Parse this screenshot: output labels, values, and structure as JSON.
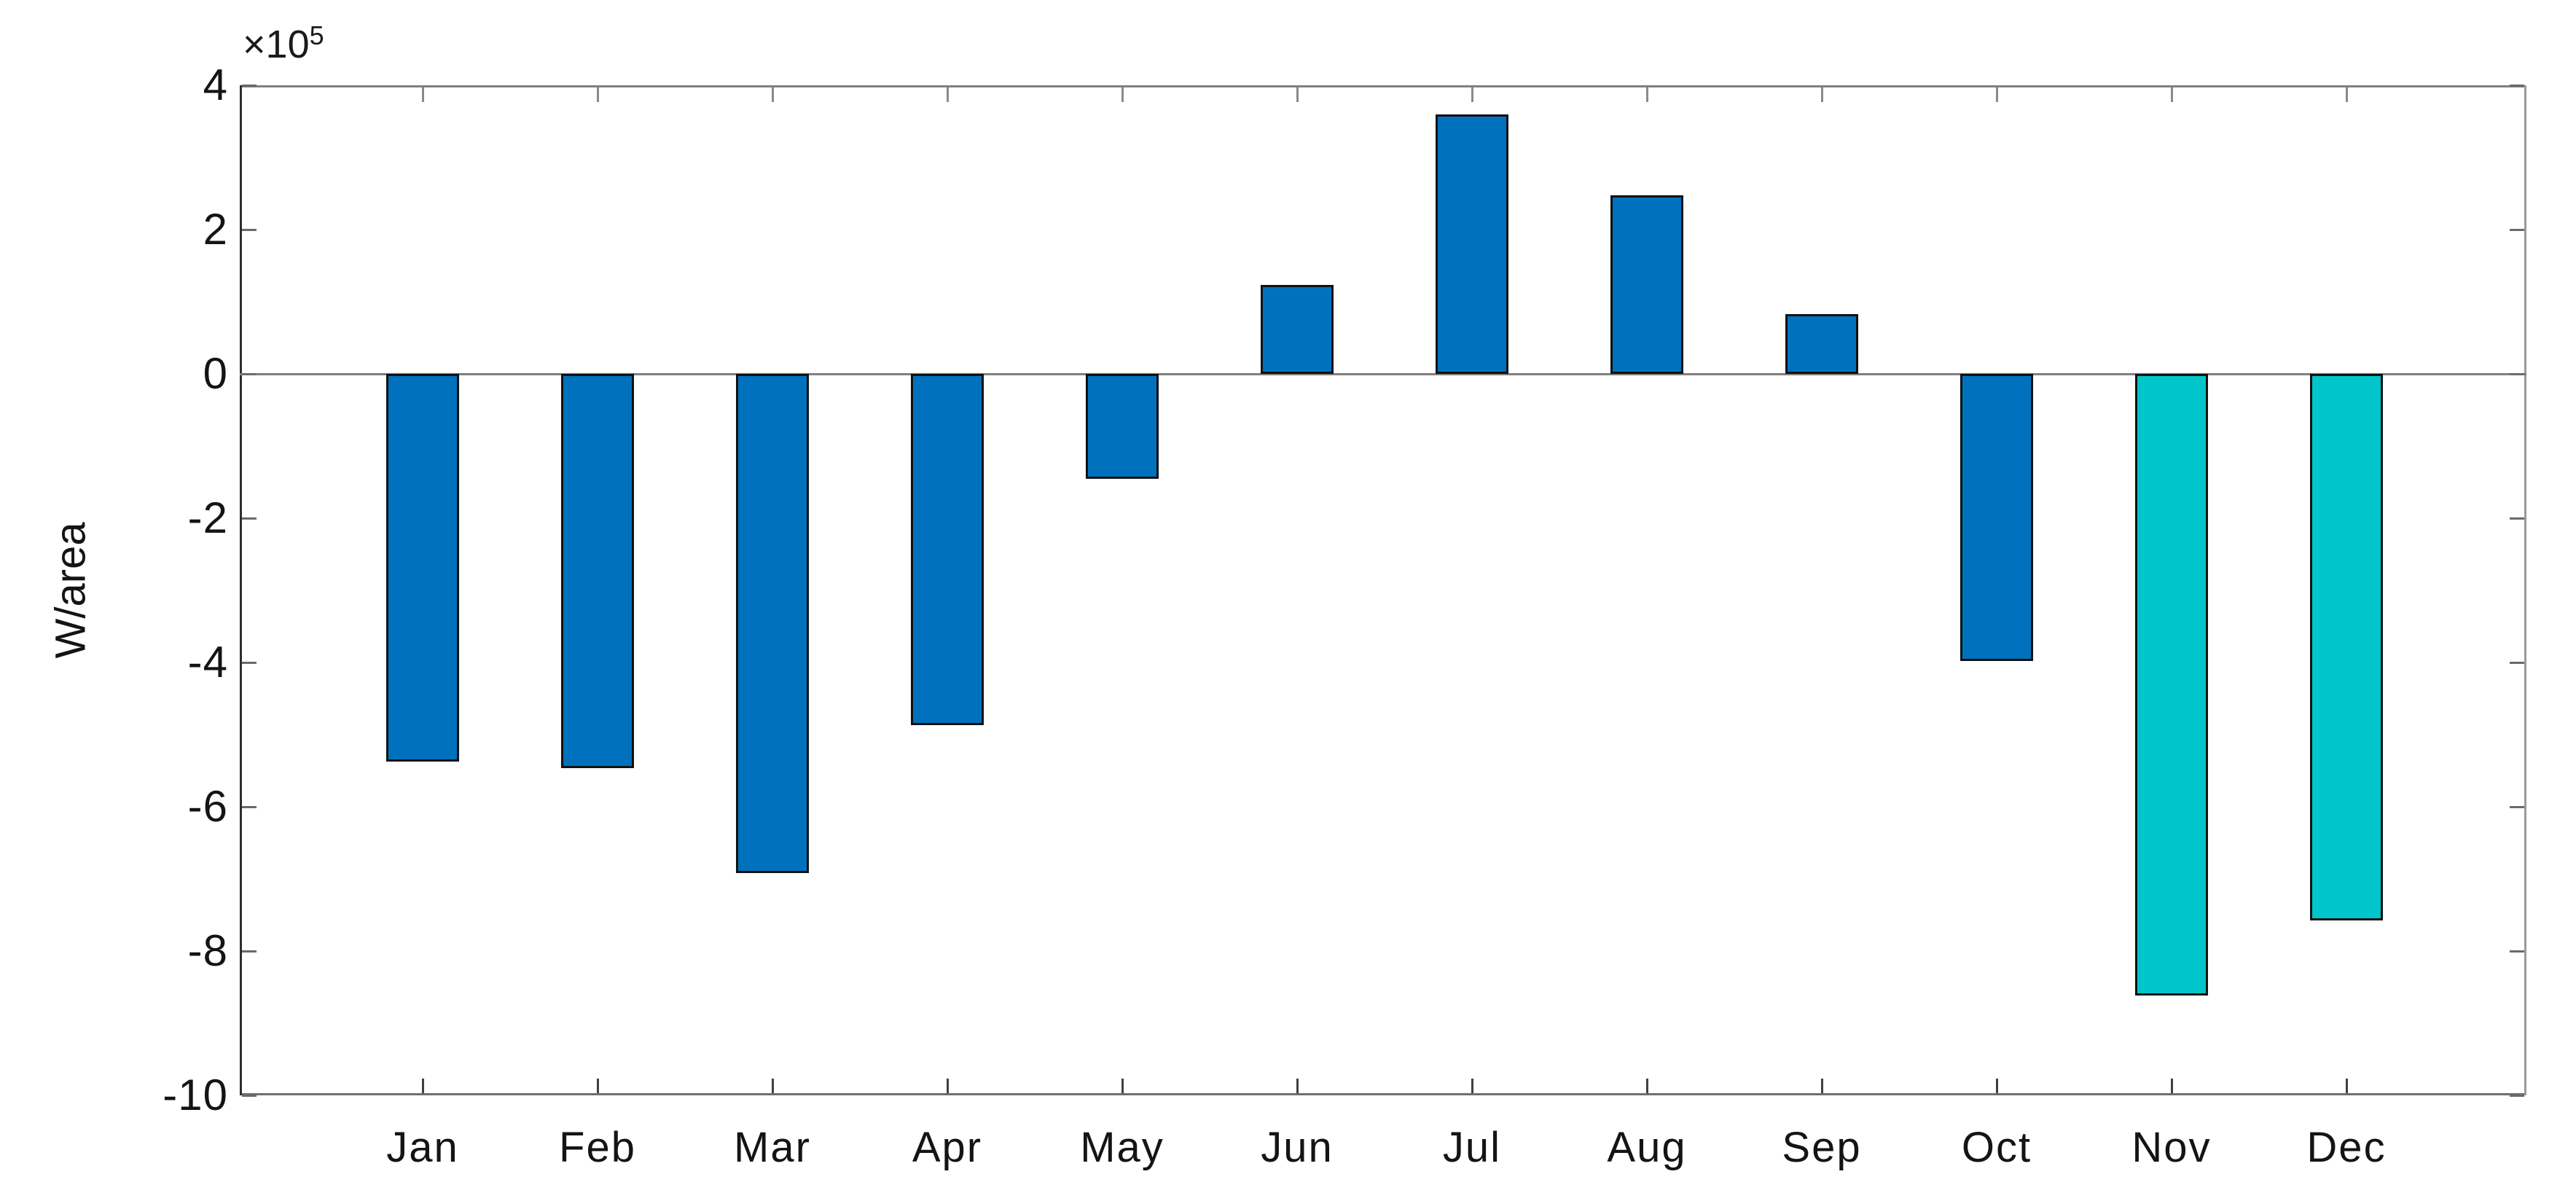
{
  "figure": {
    "background": "#ffffff"
  },
  "chart_data": {
    "type": "bar",
    "title": "",
    "xlabel": "",
    "ylabel": "W/area",
    "y_axis_exponent_base": "×10",
    "y_axis_exponent_power": "5",
    "unit_scale": "1e5",
    "categories": [
      "Jan",
      "Feb",
      "Mar",
      "Apr",
      "May",
      "Jun",
      "Jul",
      "Aug",
      "Sep",
      "Oct",
      "Nov",
      "Dec"
    ],
    "values_e5": [
      -5.37,
      -5.46,
      -6.92,
      -4.87,
      -1.45,
      1.23,
      3.6,
      2.47,
      0.83,
      -3.98,
      -8.62,
      -7.58
    ],
    "bar_colors": [
      "#0072bd",
      "#0072bd",
      "#0072bd",
      "#0072bd",
      "#0072bd",
      "#0072bd",
      "#0072bd",
      "#0072bd",
      "#0072bd",
      "#0072bd",
      "#00c6cb",
      "#00c6cb"
    ],
    "bar_edge_color": "#111111",
    "default_bar_color": "#0072bd",
    "highlight_bar_color": "#00c6cb",
    "ylim": [
      -10,
      4
    ],
    "yticks": [
      4,
      2,
      0,
      -2,
      -4,
      -6,
      -8,
      -10
    ],
    "ytick_labels": [
      "4",
      "2",
      "0",
      "-2",
      "-4",
      "-6",
      "-8",
      "-10"
    ],
    "grid": false,
    "zero_line": true,
    "legend_position": "none"
  }
}
